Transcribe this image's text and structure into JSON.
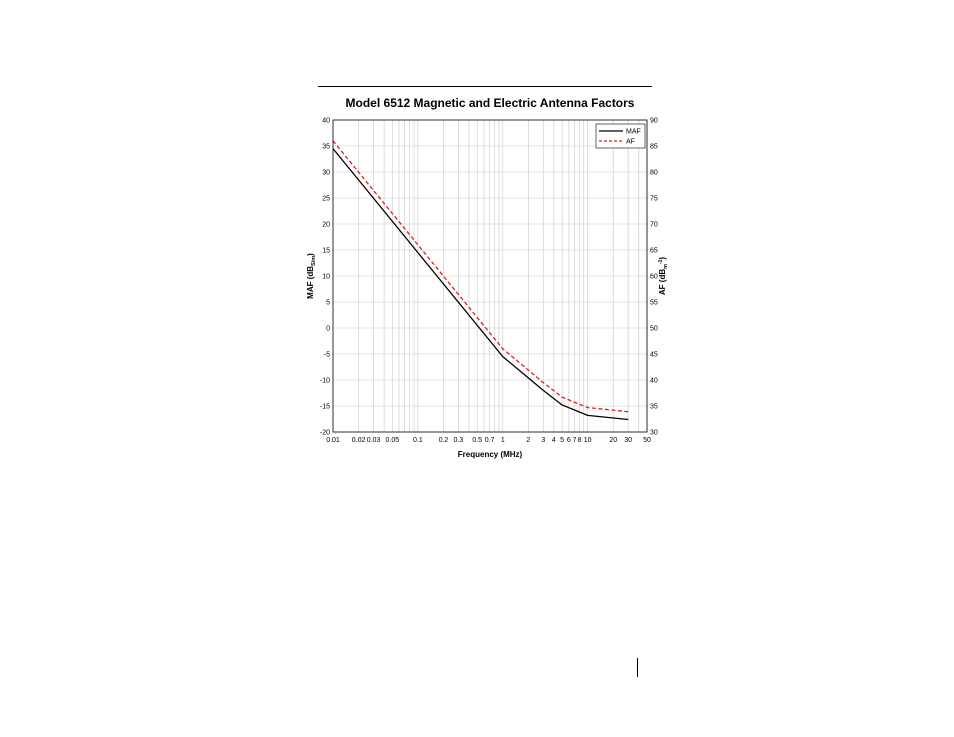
{
  "chart_data": {
    "type": "line",
    "title": "Model 6512 Magnetic and Electric Antenna Factors",
    "xlabel": "Frequency (MHz)",
    "ylabel_left": "MAF (dB",
    "ylabel_left_sub": "S/m",
    "ylabel_left_close": ")",
    "ylabel_right": "AF (dB",
    "ylabel_right_sub": "m",
    "ylabel_right_sup": "-1",
    "ylabel_right_close": ")",
    "x_scale": "log",
    "xlim": [
      0.01,
      50
    ],
    "ylim_left": [
      -20,
      40
    ],
    "ylim_right": [
      30,
      90
    ],
    "grid": true,
    "legend_position": "top-right",
    "x_tick_labels": [
      {
        "v": 0.01,
        "t": "0.01"
      },
      {
        "v": 0.02,
        "t": "0.02"
      },
      {
        "v": 0.03,
        "t": "0.03"
      },
      {
        "v": 0.05,
        "t": "0.05"
      },
      {
        "v": 0.1,
        "t": "0.1"
      },
      {
        "v": 0.2,
        "t": "0.2"
      },
      {
        "v": 0.3,
        "t": "0.3"
      },
      {
        "v": 0.5,
        "t": "0.5"
      },
      {
        "v": 0.7,
        "t": "0.7"
      },
      {
        "v": 1,
        "t": "1"
      },
      {
        "v": 2,
        "t": "2"
      },
      {
        "v": 3,
        "t": "3"
      },
      {
        "v": 4,
        "t": "4"
      },
      {
        "v": 5,
        "t": "5"
      },
      {
        "v": 6,
        "t": "6"
      },
      {
        "v": 7,
        "t": "7"
      },
      {
        "v": 8,
        "t": "8"
      },
      {
        "v": 10,
        "t": "10"
      },
      {
        "v": 20,
        "t": "20"
      },
      {
        "v": 30,
        "t": "30"
      },
      {
        "v": 50,
        "t": "50"
      }
    ],
    "y_left_ticks": [
      40,
      35,
      30,
      25,
      20,
      15,
      10,
      5,
      0,
      -5,
      -10,
      -15,
      -20
    ],
    "y_right_ticks": [
      90,
      85,
      80,
      75,
      70,
      65,
      60,
      55,
      50,
      45,
      40,
      35,
      30
    ],
    "series": [
      {
        "name": "MAF",
        "color": "#000000",
        "dash": "solid",
        "x": [
          0.01,
          0.1,
          1,
          3,
          5,
          10,
          30
        ],
        "y": [
          34.5,
          14.5,
          -5.5,
          -12.0,
          -14.8,
          -16.8,
          -17.6
        ]
      },
      {
        "name": "AF",
        "color": "#e0201b",
        "dash": "dashed",
        "x": [
          0.01,
          0.1,
          1,
          3,
          5,
          10,
          30
        ],
        "y": [
          36.0,
          16.0,
          -4.0,
          -10.5,
          -13.3,
          -15.3,
          -16.1
        ]
      }
    ]
  }
}
